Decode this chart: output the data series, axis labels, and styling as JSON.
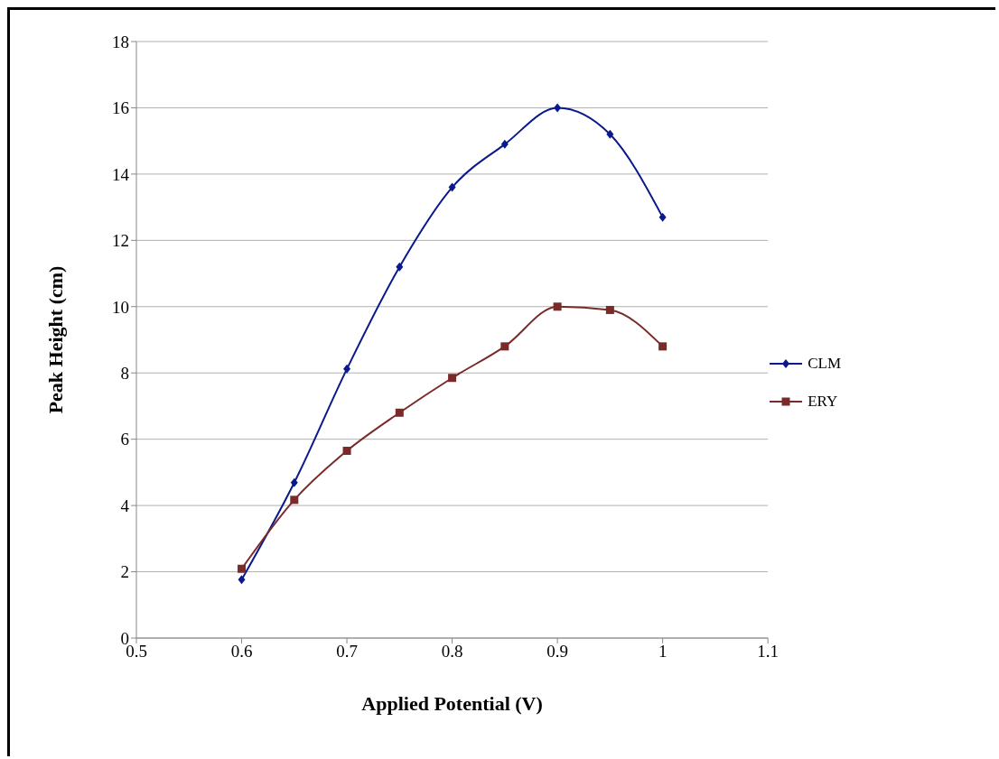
{
  "chart_data": {
    "type": "line",
    "xlabel": "Applied Potential (V)",
    "ylabel": "Peak Height (cm)",
    "x": [
      0.6,
      0.65,
      0.7,
      0.75,
      0.8,
      0.85,
      0.9,
      0.95,
      1.0
    ],
    "series": [
      {
        "name": "CLM",
        "color": "#0a1a8c",
        "marker": "diamond",
        "values": [
          1.76,
          4.69,
          8.12,
          11.2,
          13.6,
          14.9,
          16.0,
          15.2,
          12.7
        ]
      },
      {
        "name": "ERY",
        "color": "#7b2a2a",
        "marker": "square",
        "values": [
          2.09,
          4.17,
          5.65,
          6.8,
          7.85,
          8.8,
          10.0,
          9.9,
          8.8
        ]
      }
    ],
    "xlim": [
      0.5,
      1.1
    ],
    "xticks": [
      0.5,
      0.6,
      0.7,
      0.8,
      0.9,
      1,
      1.1
    ],
    "ylim": [
      0,
      18
    ],
    "yticks": [
      0,
      2,
      4,
      6,
      8,
      10,
      12,
      14,
      16,
      18
    ],
    "grid": "y",
    "legend": "right",
    "line_style": "solid"
  }
}
